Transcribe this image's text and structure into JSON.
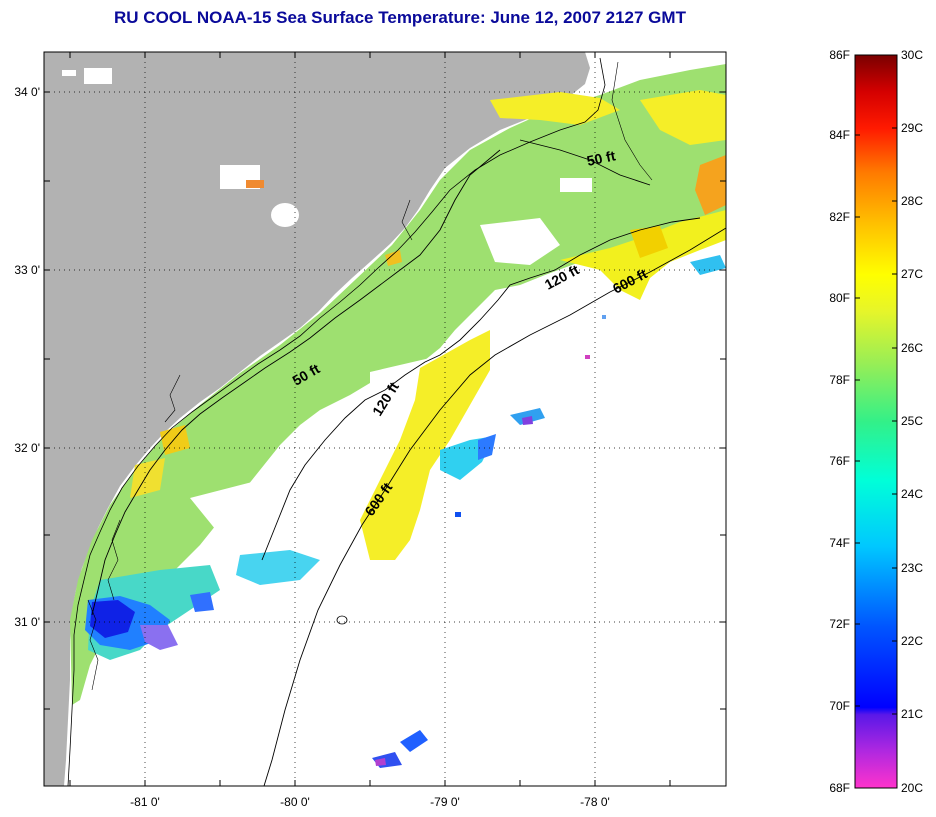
{
  "title": "RU COOL  NOAA-15  Sea Surface Temperature:  June 12, 2007 2127 GMT",
  "axes": {
    "lat_labels": [
      "34 0'",
      "33 0'",
      "32 0'",
      "31 0'"
    ],
    "lon_labels": [
      "-81 0'",
      "-80 0'",
      "-79 0'",
      "-78 0'"
    ]
  },
  "contour_labels": {
    "c50_north": "50 ft",
    "c120_north": "120 ft",
    "c600_north": "600 ft",
    "c50_south": "50 ft",
    "c120_south": "120 ft",
    "c600_south": "600 ft"
  },
  "colorbar": {
    "fahrenheit": [
      "86F",
      "84F",
      "82F",
      "80F",
      "78F",
      "76F",
      "74F",
      "72F",
      "70F",
      "68F"
    ],
    "celsius": [
      "30C",
      "29C",
      "28C",
      "27C",
      "26C",
      "25C",
      "24C",
      "23C",
      "22C",
      "21C",
      "20C"
    ]
  },
  "colors": {
    "land": "#b2b2b2",
    "title": "#0a0a9a",
    "sst_dominant": "#9ee070"
  }
}
